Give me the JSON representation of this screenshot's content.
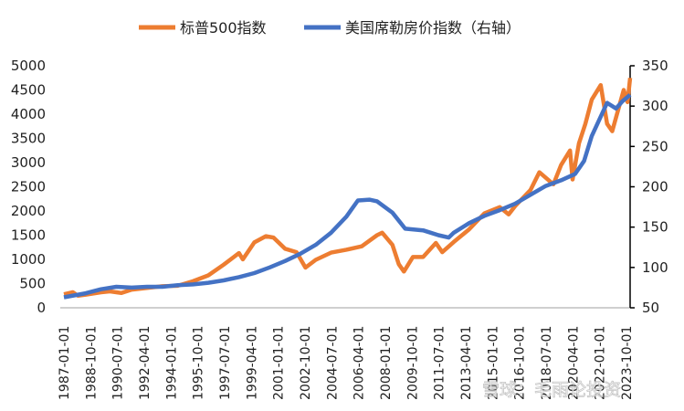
{
  "chart_data": {
    "type": "line",
    "title": "",
    "legend_position": "top",
    "grid": false,
    "x_tick_labels": [
      "1987-01-01",
      "1988-10-01",
      "1990-07-01",
      "1992-04-01",
      "1994-01-01",
      "1995-10-01",
      "1997-07-01",
      "1999-04-01",
      "2001-01-01",
      "2002-10-01",
      "2004-07-01",
      "2006-04-01",
      "2008-01-01",
      "2009-10-01",
      "2011-07-01",
      "2013-04-01",
      "2015-01-01",
      "2016-10-01",
      "2018-07-01",
      "2020-04-01",
      "2022-01-01",
      "2023-10-01"
    ],
    "x_range": [
      "1987-01",
      "2023-12"
    ],
    "left_axis": {
      "ylim": [
        0,
        5000
      ],
      "ticks": [
        "0",
        "500",
        "1000",
        "1500",
        "2000",
        "2500",
        "3000",
        "3500",
        "4000",
        "4500",
        "5000"
      ]
    },
    "right_axis": {
      "ylim": [
        50,
        350
      ],
      "ticks": [
        "50",
        "100",
        "150",
        "200",
        "250",
        "300",
        "350"
      ]
    },
    "series": [
      {
        "name": "标普500指数",
        "axis": "left",
        "color": "#ED7D31",
        "points": [
          [
            "1987-01",
            280
          ],
          [
            "1987-08",
            320
          ],
          [
            "1987-12",
            250
          ],
          [
            "1988-06",
            270
          ],
          [
            "1989-06",
            320
          ],
          [
            "1990-01",
            340
          ],
          [
            "1990-10",
            305
          ],
          [
            "1991-06",
            375
          ],
          [
            "1992-06",
            410
          ],
          [
            "1993-06",
            445
          ],
          [
            "1994-06",
            455
          ],
          [
            "1995-06",
            550
          ],
          [
            "1996-06",
            670
          ],
          [
            "1997-06",
            890
          ],
          [
            "1998-06",
            1130
          ],
          [
            "1998-09",
            1000
          ],
          [
            "1999-06",
            1350
          ],
          [
            "2000-03",
            1480
          ],
          [
            "2000-09",
            1450
          ],
          [
            "2001-06",
            1220
          ],
          [
            "2002-03",
            1150
          ],
          [
            "2002-10",
            830
          ],
          [
            "2003-06",
            990
          ],
          [
            "2004-06",
            1140
          ],
          [
            "2005-06",
            1200
          ],
          [
            "2006-06",
            1270
          ],
          [
            "2007-06",
            1500
          ],
          [
            "2007-10",
            1550
          ],
          [
            "2008-06",
            1300
          ],
          [
            "2008-11",
            900
          ],
          [
            "2009-03",
            750
          ],
          [
            "2009-10",
            1050
          ],
          [
            "2010-06",
            1050
          ],
          [
            "2011-04",
            1340
          ],
          [
            "2011-09",
            1150
          ],
          [
            "2012-06",
            1360
          ],
          [
            "2013-06",
            1620
          ],
          [
            "2014-06",
            1950
          ],
          [
            "2015-06",
            2080
          ],
          [
            "2016-01",
            1930
          ],
          [
            "2016-06",
            2100
          ],
          [
            "2017-06",
            2430
          ],
          [
            "2018-01",
            2800
          ],
          [
            "2018-12",
            2550
          ],
          [
            "2019-06",
            2950
          ],
          [
            "2020-01",
            3250
          ],
          [
            "2020-03",
            2650
          ],
          [
            "2020-08",
            3400
          ],
          [
            "2021-01",
            3800
          ],
          [
            "2021-06",
            4300
          ],
          [
            "2022-01",
            4600
          ],
          [
            "2022-06",
            3800
          ],
          [
            "2022-10",
            3650
          ],
          [
            "2023-07",
            4500
          ],
          [
            "2023-10",
            4250
          ],
          [
            "2023-12",
            4750
          ]
        ]
      },
      {
        "name": "美国席勒房价指数（右轴）",
        "axis": "right",
        "color": "#4472C4",
        "points": [
          [
            "1987-01",
            63
          ],
          [
            "1988-06",
            68
          ],
          [
            "1989-06",
            73
          ],
          [
            "1990-06",
            76
          ],
          [
            "1991-06",
            75
          ],
          [
            "1992-06",
            76
          ],
          [
            "1993-06",
            76
          ],
          [
            "1994-06",
            78
          ],
          [
            "1995-06",
            79
          ],
          [
            "1996-06",
            81
          ],
          [
            "1997-06",
            84
          ],
          [
            "1998-06",
            88
          ],
          [
            "1999-06",
            93
          ],
          [
            "2000-06",
            100
          ],
          [
            "2001-06",
            108
          ],
          [
            "2002-06",
            117
          ],
          [
            "2003-06",
            128
          ],
          [
            "2004-06",
            143
          ],
          [
            "2005-06",
            163
          ],
          [
            "2006-03",
            183
          ],
          [
            "2006-12",
            184
          ],
          [
            "2007-06",
            182
          ],
          [
            "2008-06",
            168
          ],
          [
            "2009-04",
            148
          ],
          [
            "2010-06",
            146
          ],
          [
            "2011-06",
            140
          ],
          [
            "2012-02",
            137
          ],
          [
            "2012-06",
            143
          ],
          [
            "2013-06",
            155
          ],
          [
            "2014-06",
            164
          ],
          [
            "2015-06",
            171
          ],
          [
            "2016-06",
            179
          ],
          [
            "2017-06",
            190
          ],
          [
            "2018-06",
            201
          ],
          [
            "2019-06",
            208
          ],
          [
            "2020-05",
            216
          ],
          [
            "2020-12",
            232
          ],
          [
            "2021-06",
            263
          ],
          [
            "2022-06",
            304
          ],
          [
            "2023-01",
            297
          ],
          [
            "2023-06",
            306
          ],
          [
            "2023-12",
            314
          ]
        ]
      }
    ]
  },
  "watermark": "雪球：毛雨论投资"
}
